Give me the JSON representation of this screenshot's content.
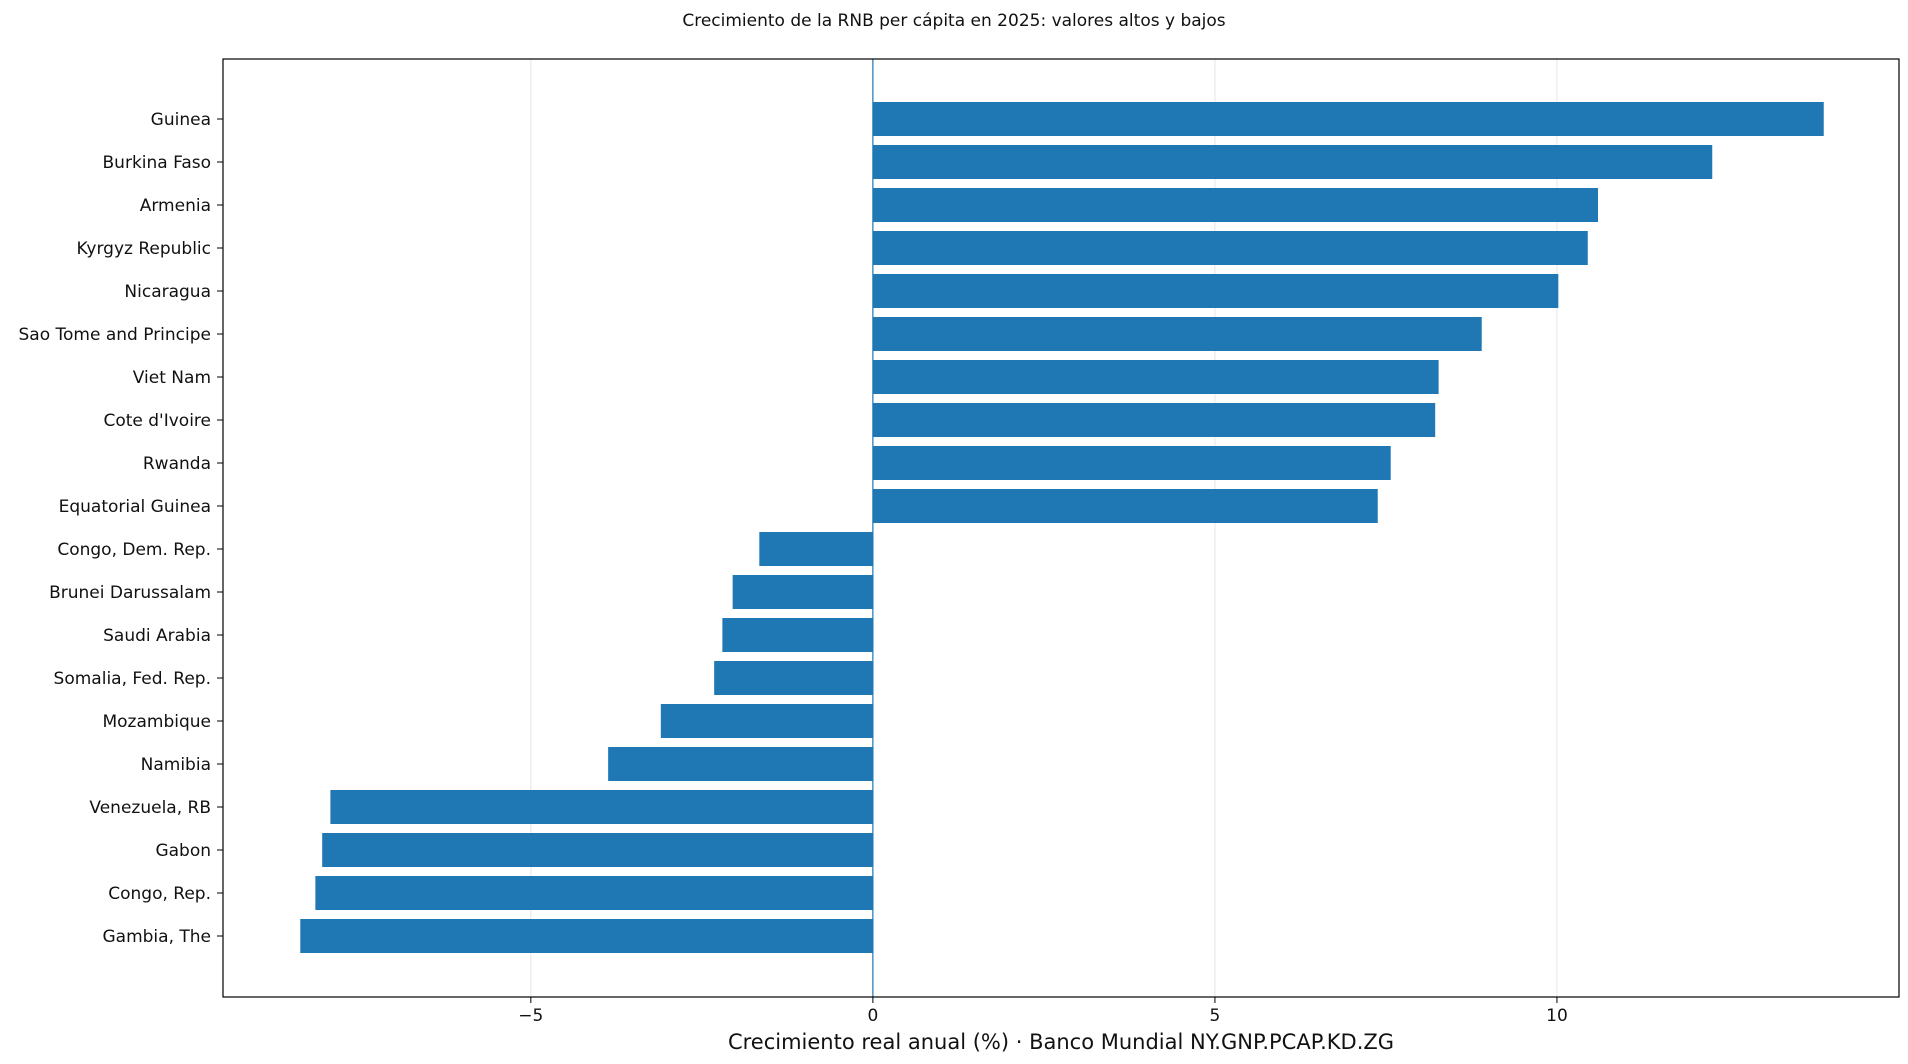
{
  "chart_data": {
    "type": "bar",
    "orientation": "horizontal",
    "title": "Crecimiento de la RNB per cápita en 2025: valores altos y bajos",
    "xlabel": "Crecimiento real anual (%) · Banco Mundial NY.GNP.PCAP.KD.ZG",
    "ylabel": "",
    "xlim": [
      -9.5,
      15
    ],
    "xticks": [
      -5,
      0,
      5,
      10
    ],
    "xtick_labels": [
      "−5",
      "0",
      "5",
      "10"
    ],
    "grid": "x-vertical",
    "categories": [
      "Guinea",
      "Burkina Faso",
      "Armenia",
      "Kyrgyz Republic",
      "Nicaragua",
      "Sao Tome and Principe",
      "Viet Nam",
      "Cote d'Ivoire",
      "Rwanda",
      "Equatorial Guinea",
      "Congo, Dem. Rep.",
      "Brunei Darussalam",
      "Saudi Arabia",
      "Somalia, Fed. Rep.",
      "Mozambique",
      "Namibia",
      "Venezuela, RB",
      "Gabon",
      "Congo, Rep.",
      "Gambia, The"
    ],
    "values": [
      13.9,
      12.27,
      10.6,
      10.45,
      10.02,
      8.9,
      8.27,
      8.22,
      7.57,
      7.38,
      -1.66,
      -2.05,
      -2.2,
      -2.32,
      -3.1,
      -3.87,
      -7.93,
      -8.05,
      -8.15,
      -8.37
    ],
    "bar_color": "#1f77b4"
  }
}
